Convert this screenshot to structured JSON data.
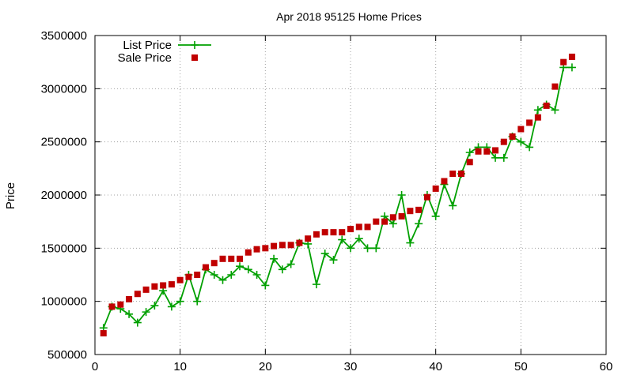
{
  "chart_data": {
    "type": "line",
    "title": "Apr 2018 95125 Home Prices",
    "xlabel": "",
    "ylabel": "Price",
    "xlim": [
      0,
      60
    ],
    "ylim": [
      500000,
      3500000
    ],
    "xticks": [
      0,
      10,
      20,
      30,
      40,
      50,
      60
    ],
    "yticks": [
      500000,
      1000000,
      1500000,
      2000000,
      2500000,
      3000000,
      3500000
    ],
    "grid": true,
    "legend_position": "top-left",
    "x": [
      1,
      2,
      3,
      4,
      5,
      6,
      7,
      8,
      9,
      10,
      11,
      12,
      13,
      14,
      15,
      16,
      17,
      18,
      19,
      20,
      21,
      22,
      23,
      24,
      25,
      26,
      27,
      28,
      29,
      30,
      31,
      32,
      33,
      34,
      35,
      36,
      37,
      38,
      39,
      40,
      41,
      42,
      43,
      44,
      45,
      46,
      47,
      48,
      49,
      50,
      51,
      52,
      53,
      54,
      55,
      56
    ],
    "series": [
      {
        "name": "List Price",
        "style": "linespoints",
        "marker": "plus",
        "color": "#00a000",
        "values": [
          750000,
          950000,
          930000,
          880000,
          800000,
          900000,
          960000,
          1100000,
          950000,
          1000000,
          1250000,
          1000000,
          1300000,
          1250000,
          1200000,
          1250000,
          1330000,
          1300000,
          1250000,
          1150000,
          1400000,
          1300000,
          1350000,
          1550000,
          1540000,
          1160000,
          1450000,
          1390000,
          1580000,
          1500000,
          1590000,
          1500000,
          1500000,
          1800000,
          1730000,
          2000000,
          1550000,
          1730000,
          2000000,
          1800000,
          2100000,
          1900000,
          2200000,
          2400000,
          2450000,
          2450000,
          2350000,
          2350000,
          2550000,
          2500000,
          2450000,
          2800000,
          2850000,
          2800000,
          3200000,
          3200000
        ]
      },
      {
        "name": "Sale Price",
        "style": "points",
        "marker": "square",
        "color": "#c00000",
        "values": [
          700000,
          950000,
          970000,
          1020000,
          1070000,
          1110000,
          1140000,
          1150000,
          1160000,
          1200000,
          1230000,
          1250000,
          1320000,
          1360000,
          1400000,
          1400000,
          1400000,
          1460000,
          1490000,
          1500000,
          1520000,
          1530000,
          1530000,
          1550000,
          1590000,
          1630000,
          1650000,
          1650000,
          1650000,
          1680000,
          1700000,
          1700000,
          1750000,
          1750000,
          1790000,
          1800000,
          1850000,
          1860000,
          1980000,
          2060000,
          2130000,
          2200000,
          2200000,
          2310000,
          2410000,
          2410000,
          2420000,
          2500000,
          2550000,
          2620000,
          2680000,
          2730000,
          2840000,
          3020000,
          3250000,
          3300000
        ]
      }
    ]
  }
}
